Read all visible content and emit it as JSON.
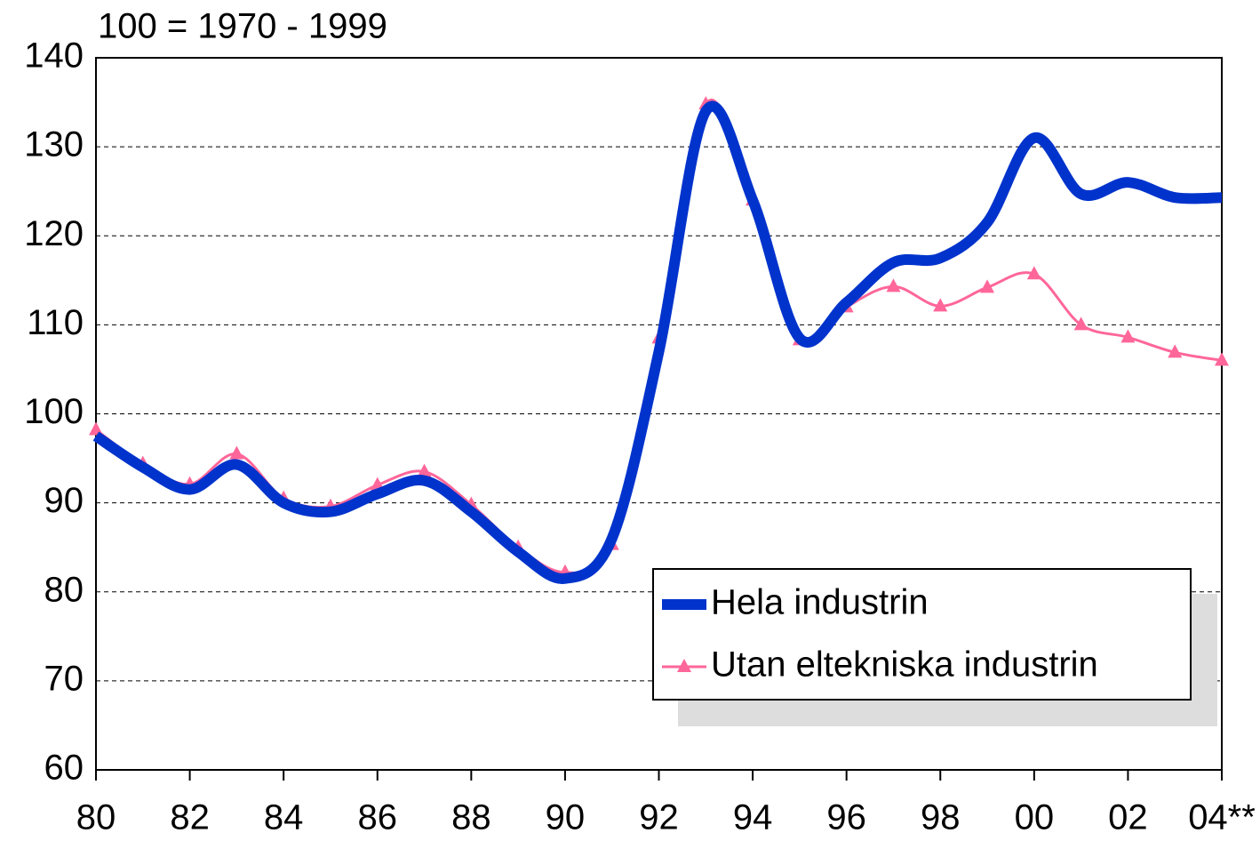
{
  "chart_data": {
    "type": "line",
    "subtitle": "100 = 1970 - 1999",
    "categories": [
      "80",
      null,
      "82",
      null,
      "84",
      null,
      "86",
      null,
      "88",
      null,
      "90",
      null,
      "92",
      null,
      "94",
      null,
      "96",
      null,
      "98",
      null,
      "00",
      null,
      "02",
      null,
      "04**"
    ],
    "series": [
      {
        "name": "Hela industrin",
        "color": "#0033cc",
        "values": [
          97.5,
          94,
          91.5,
          94.3,
          90,
          89,
          91,
          92.5,
          89,
          84.5,
          81.5,
          86,
          107,
          134,
          124,
          108.5,
          112.5,
          117,
          117.5,
          121.5,
          131,
          124.7,
          126,
          124.3,
          124.3
        ]
      },
      {
        "name": "Utan eltekniska industrin",
        "color": "#ff6699",
        "values": [
          98.2,
          94.4,
          92.1,
          95.5,
          90.5,
          89.6,
          92,
          93.5,
          89.8,
          85,
          82.2,
          85.3,
          108.5,
          134.8,
          124,
          108.3,
          112,
          114.3,
          112.1,
          114.2,
          115.7,
          110,
          108.6,
          106.9,
          106
        ]
      }
    ],
    "ylim": [
      60,
      140
    ],
    "yticks": [
      60,
      70,
      80,
      90,
      100,
      110,
      120,
      130,
      140
    ],
    "grid": true
  }
}
